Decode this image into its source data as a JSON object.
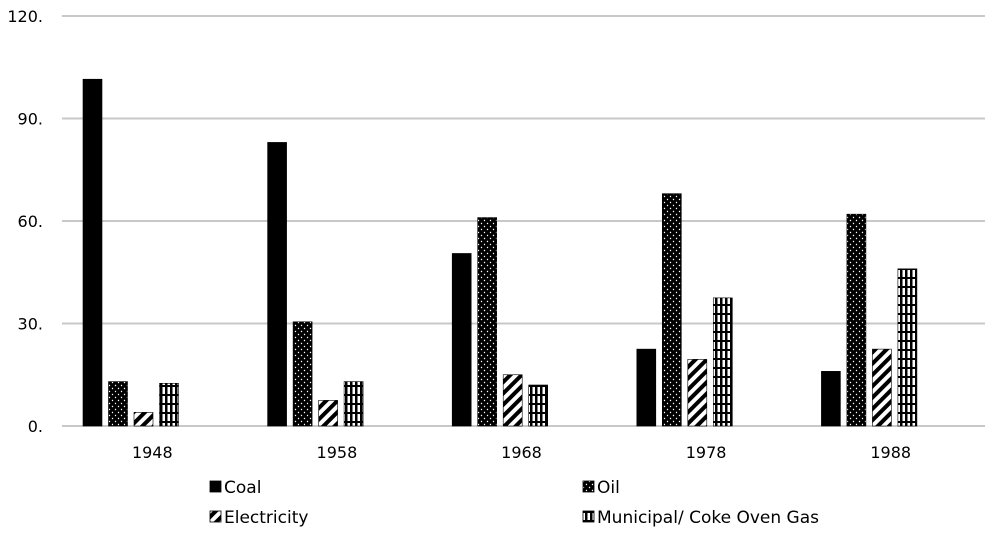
{
  "chart_data": {
    "type": "bar",
    "title": "",
    "xlabel": "",
    "ylabel": "",
    "categories": [
      "1948",
      "1958",
      "1968",
      "1978",
      "1988"
    ],
    "ylim": [
      0,
      120
    ],
    "yticks": [
      0,
      30,
      60,
      90,
      120
    ],
    "ytick_labels": [
      "0.",
      "30.",
      "60.",
      "90.",
      "120."
    ],
    "grid": "horizontal",
    "legend_position": "bottom",
    "series": [
      {
        "name": "Coal",
        "pattern": "solid",
        "values": [
          101.5,
          83,
          50.5,
          22.5,
          16
        ]
      },
      {
        "name": "Oil",
        "pattern": "dots",
        "values": [
          13,
          30.5,
          61,
          68,
          62
        ]
      },
      {
        "name": "Electricity",
        "pattern": "diagonal",
        "values": [
          4,
          7.5,
          15,
          19.5,
          22.5
        ]
      },
      {
        "name": "Municipal/ Coke Oven Gas",
        "pattern": "grid-vertical",
        "values": [
          12.5,
          13,
          12,
          37.5,
          46
        ]
      }
    ],
    "colors": {
      "ink": "#000000",
      "grid": "#c8c8c8",
      "background": "#ffffff"
    }
  }
}
